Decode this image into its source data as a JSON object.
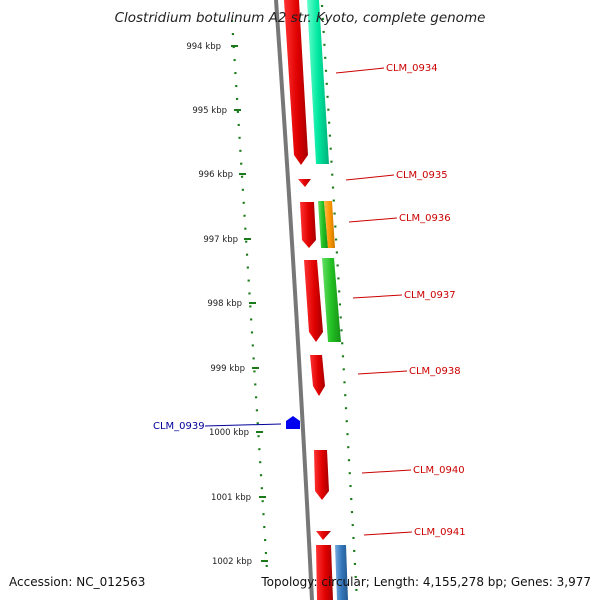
{
  "title": "Clostridium botulinum A2 str. Kyoto, complete genome",
  "footer": {
    "accession": "Accession: NC_012563",
    "topology": "Topology: circular; Length: 4,155,278 bp; Genes: 3,977"
  },
  "axis": {
    "unit": "kbp",
    "ticks": [
      "994 kbp",
      "995 kbp",
      "996 kbp",
      "997 kbp",
      "998 kbp",
      "999 kbp",
      "1000 kbp",
      "1001 kbp",
      "1002 kbp"
    ]
  },
  "genes": [
    {
      "label": "CLM_0934",
      "strand": "forward",
      "color": "#cc0000"
    },
    {
      "label": "CLM_0935",
      "strand": "forward",
      "color": "#cc0000"
    },
    {
      "label": "CLM_0936",
      "strand": "forward",
      "color": "#cc0000"
    },
    {
      "label": "CLM_0937",
      "strand": "forward",
      "color": "#cc0000"
    },
    {
      "label": "CLM_0938",
      "strand": "forward",
      "color": "#cc0000"
    },
    {
      "label": "CLM_0939",
      "strand": "reverse",
      "color": "#0000cc"
    },
    {
      "label": "CLM_0940",
      "strand": "forward",
      "color": "#cc0000"
    },
    {
      "label": "CLM_0941",
      "strand": "forward",
      "color": "#cc0000"
    }
  ],
  "colors": {
    "forward_label": "#cc0000",
    "reverse_label": "#000099",
    "backbone": "#777777",
    "gc_dots": "#1a7a1a",
    "cog_teal": "#00e8a0",
    "cog_green": "#22c022",
    "cog_orange": "#ff9900",
    "cog_blue": "#3377bb"
  }
}
